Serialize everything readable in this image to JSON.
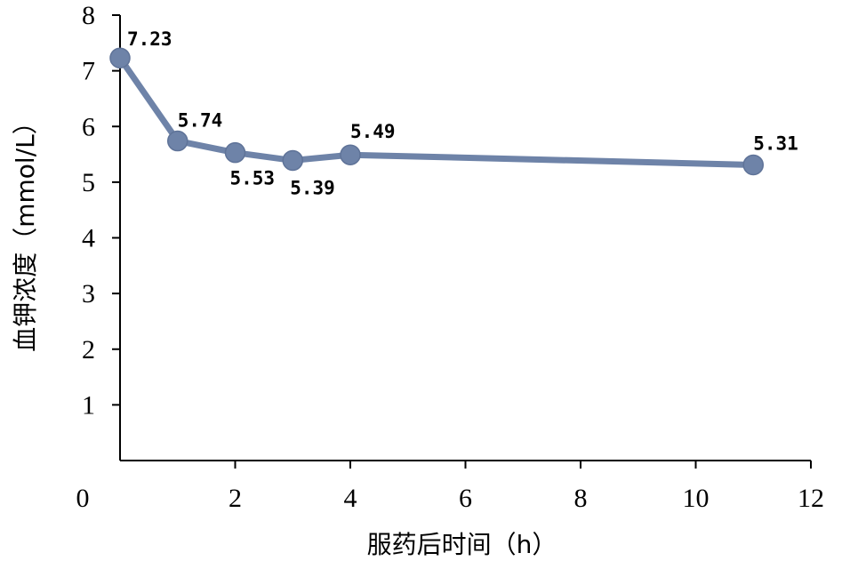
{
  "chart_data": {
    "type": "line",
    "title": "",
    "xlabel": "服药后时间（h）",
    "ylabel": "血钾浓度（mmol/L）",
    "xlim": [
      0,
      12
    ],
    "ylim": [
      0,
      8
    ],
    "x_ticks": [
      0,
      2,
      4,
      6,
      8,
      10,
      12
    ],
    "y_ticks": [
      1,
      2,
      3,
      4,
      5,
      6,
      7,
      8
    ],
    "grid": false,
    "legend": "none",
    "series": [
      {
        "color": "#6e83a8",
        "x": [
          0,
          1,
          2,
          3,
          4,
          11
        ],
        "y": [
          7.23,
          5.74,
          5.53,
          5.39,
          5.49,
          5.31
        ],
        "labels": [
          "7.23",
          "5.74",
          "5.53",
          "5.39",
          "5.49",
          "5.31"
        ]
      }
    ]
  }
}
